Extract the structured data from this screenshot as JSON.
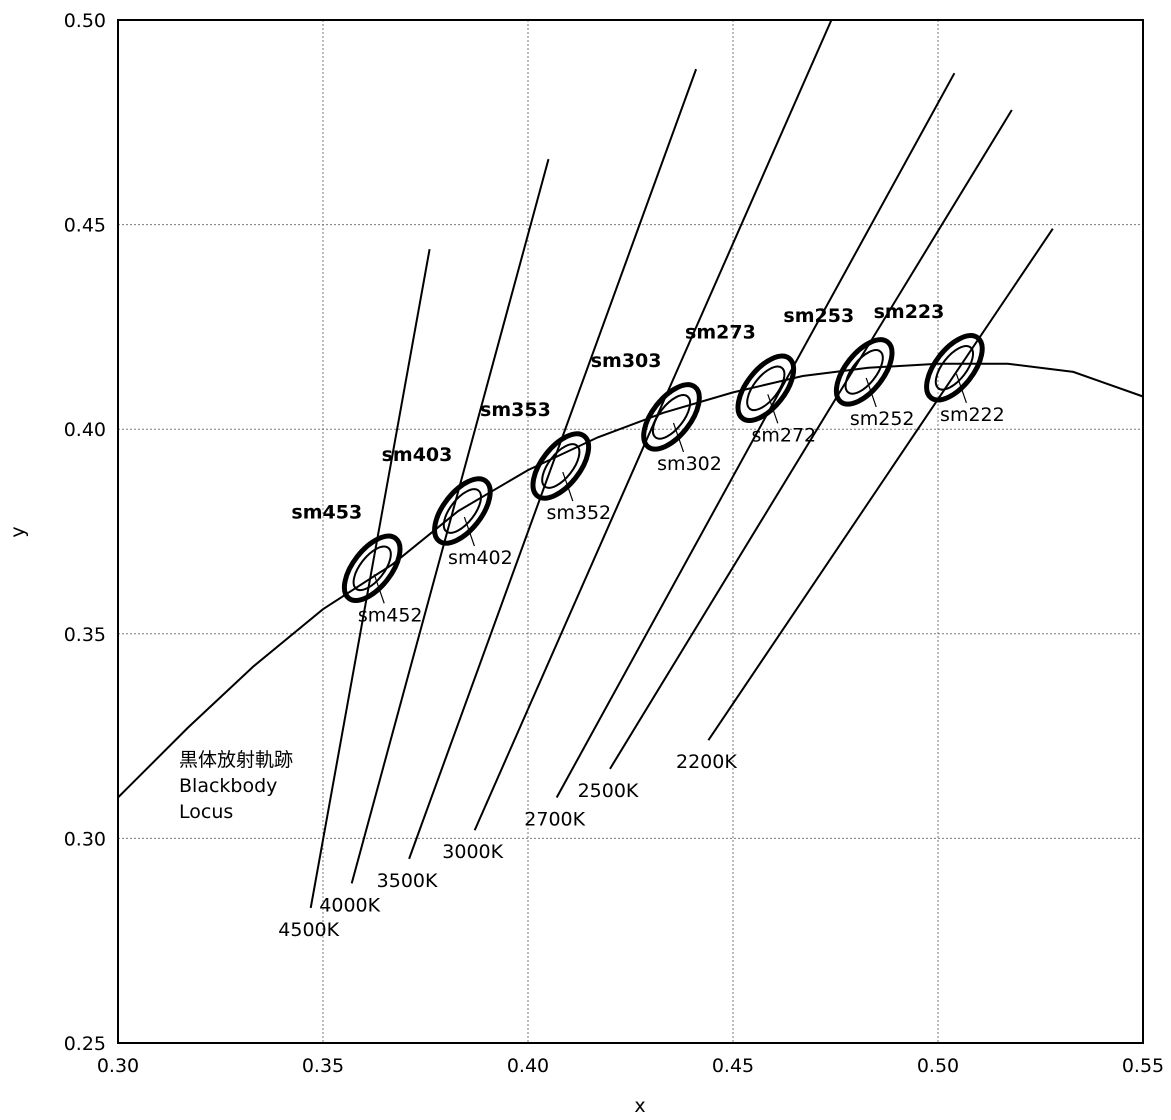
{
  "chart_data": {
    "type": "scatter",
    "xlabel": "x",
    "ylabel": "y",
    "xlim": [
      0.3,
      0.55
    ],
    "ylim": [
      0.25,
      0.5
    ],
    "grid": true,
    "x_ticks": [
      "0.30",
      "0.35",
      "0.40",
      "0.45",
      "0.50",
      "0.55"
    ],
    "y_ticks": [
      "0.25",
      "0.30",
      "0.35",
      "0.40",
      "0.45",
      "0.50"
    ],
    "locus": {
      "label_lines": [
        "黒体放射軌跡",
        "Blackbody",
        "Locus"
      ],
      "points": [
        [
          0.3,
          0.31
        ],
        [
          0.317,
          0.327
        ],
        [
          0.333,
          0.342
        ],
        [
          0.35,
          0.356
        ],
        [
          0.367,
          0.367
        ],
        [
          0.383,
          0.38
        ],
        [
          0.4,
          0.39
        ],
        [
          0.417,
          0.398
        ],
        [
          0.433,
          0.404
        ],
        [
          0.45,
          0.409
        ],
        [
          0.467,
          0.413
        ],
        [
          0.483,
          0.415
        ],
        [
          0.5,
          0.416
        ],
        [
          0.517,
          0.416
        ],
        [
          0.533,
          0.414
        ],
        [
          0.55,
          0.408
        ]
      ]
    },
    "cct_lines": [
      {
        "label": "4500K",
        "from": [
          0.347,
          0.283
        ],
        "to": [
          0.376,
          0.444
        ]
      },
      {
        "label": "4000K",
        "from": [
          0.357,
          0.289
        ],
        "to": [
          0.405,
          0.466
        ]
      },
      {
        "label": "3500K",
        "from": [
          0.371,
          0.295
        ],
        "to": [
          0.441,
          0.488
        ]
      },
      {
        "label": "3000K",
        "from": [
          0.387,
          0.302
        ],
        "to": [
          0.474,
          0.5
        ]
      },
      {
        "label": "2700K",
        "from": [
          0.407,
          0.31
        ],
        "to": [
          0.504,
          0.487
        ]
      },
      {
        "label": "2500K",
        "from": [
          0.42,
          0.317
        ],
        "to": [
          0.518,
          0.478
        ]
      },
      {
        "label": "2200K",
        "from": [
          0.444,
          0.324
        ],
        "to": [
          0.528,
          0.449
        ]
      }
    ],
    "ellipses": [
      {
        "outer": "sm453",
        "inner": "sm452",
        "x": 0.362,
        "y": 0.366
      },
      {
        "outer": "sm403",
        "inner": "sm402",
        "x": 0.384,
        "y": 0.38
      },
      {
        "outer": "sm353",
        "inner": "sm352",
        "x": 0.408,
        "y": 0.391
      },
      {
        "outer": "sm303",
        "inner": "sm302",
        "x": 0.435,
        "y": 0.403
      },
      {
        "outer": "sm273",
        "inner": "sm272",
        "x": 0.458,
        "y": 0.41
      },
      {
        "outer": "sm253",
        "inner": "sm252",
        "x": 0.482,
        "y": 0.414
      },
      {
        "outer": "sm223",
        "inner": "sm222",
        "x": 0.504,
        "y": 0.415
      }
    ]
  }
}
